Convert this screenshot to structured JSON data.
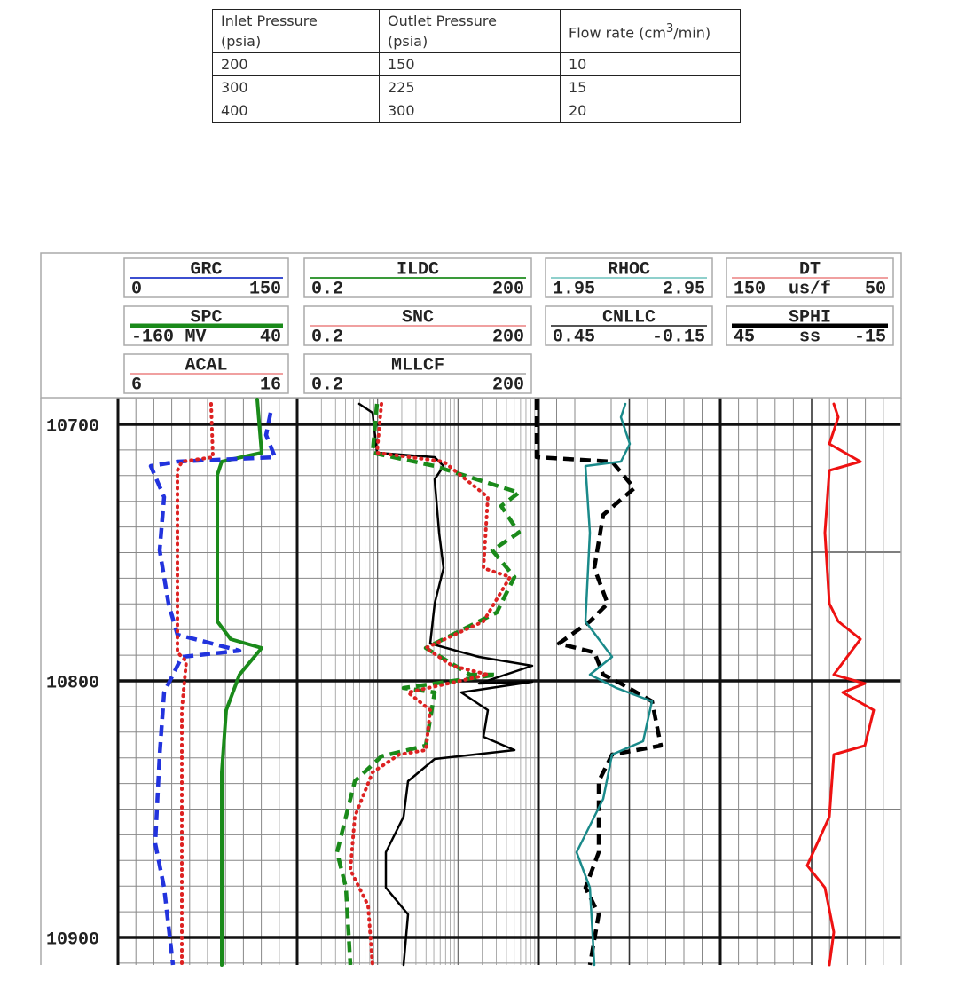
{
  "table": {
    "header": [
      [
        "Inlet Pressure",
        "(psia)"
      ],
      [
        "Outlet Pressure",
        "(psia)"
      ]
    ],
    "flow_header": {
      "before": "Flow rate (cm",
      "sup": "3",
      "after": "/min)"
    },
    "rows": [
      [
        "200",
        "150",
        "10"
      ],
      [
        "300",
        "225",
        "15"
      ],
      [
        "400",
        "300",
        "20"
      ]
    ]
  },
  "log": {
    "legend": [
      {
        "name": "GRC",
        "left": "0",
        "right": "150",
        "color": "#3c4fd0"
      },
      {
        "name": "ILDC",
        "left": "0.2",
        "right": "200",
        "color": "#3a9a3a"
      },
      {
        "name": "RHOC",
        "left": "1.95",
        "right": "2.95",
        "color": "#8fd0cc"
      },
      {
        "name": "DT",
        "left": "150",
        "mid": "us/f",
        "right": "50",
        "color": "#f0a0a0"
      },
      {
        "name": "SPC",
        "left": "-160",
        "mid": "MV",
        "right": "40",
        "color": "#1a8a1a"
      },
      {
        "name": "SNC",
        "left": "0.2",
        "right": "200",
        "color": "#f0a0a0"
      },
      {
        "name": "CNLLC",
        "left": "0.45",
        "right": "-0.15",
        "color": "#555555"
      },
      {
        "name": "SPHI",
        "left": "45",
        "mid": "ss",
        "right": "-15",
        "color": "#000000"
      },
      {
        "name": "ACAL",
        "left": "6",
        "right": "16",
        "color": "#f0a0a0"
      },
      {
        "name": "MLLCF",
        "left": "0.2",
        "right": "200",
        "color": "#bbbbbb"
      }
    ],
    "depths": [
      "10700",
      "10800",
      "10900"
    ]
  }
}
